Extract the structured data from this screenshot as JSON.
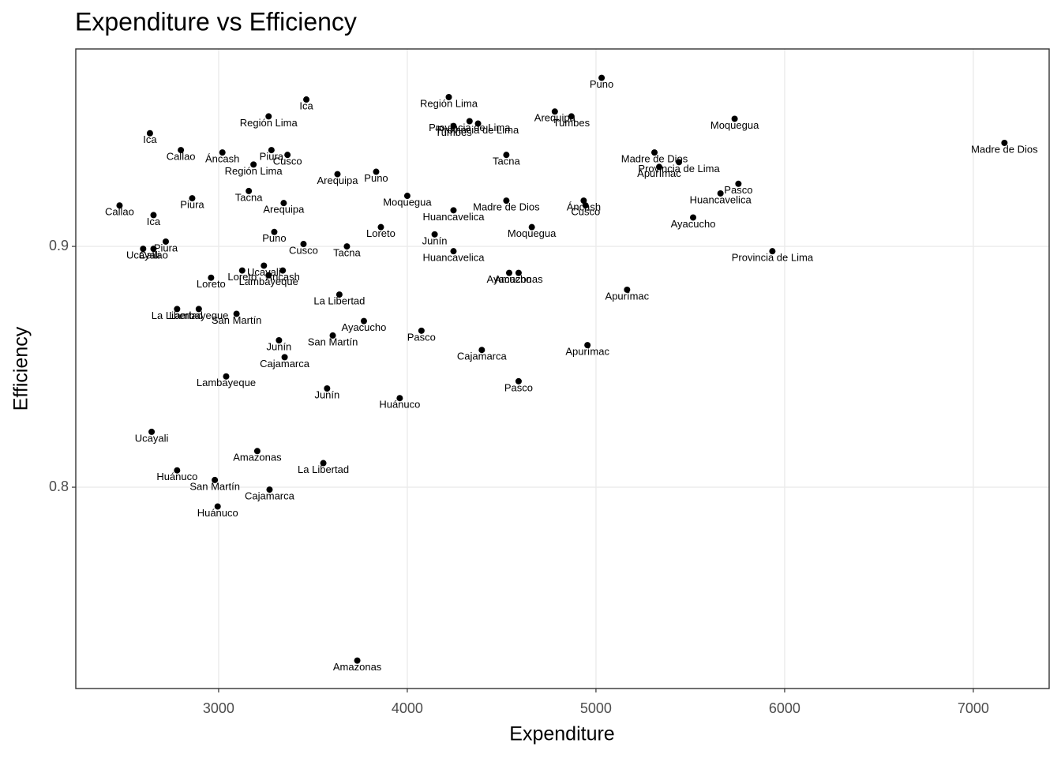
{
  "chart_data": {
    "type": "scatter",
    "title": "Expenditure vs Efficiency",
    "x_label": "Expenditure",
    "y_label": "Efficiency",
    "color": "#000000",
    "grid": true,
    "xlim": [
      2243,
      7402
    ],
    "ylim": [
      0.7164,
      0.982
    ],
    "xticks": [
      3000,
      4000,
      5000,
      6000,
      7000
    ],
    "yticks": [
      0.8,
      0.9
    ],
    "x": [
      5030,
      3465,
      4220,
      3265,
      4782,
      4870,
      5735,
      2636,
      4245,
      4330,
      4375,
      2800,
      3020,
      3280,
      3365,
      3185,
      4525,
      7165,
      5310,
      5440,
      5335,
      3630,
      3835,
      5755,
      5660,
      3160,
      4000,
      2860,
      4525,
      4935,
      4945,
      2475,
      3345,
      4245,
      2655,
      5515,
      4660,
      3860,
      3295,
      4145,
      3450,
      2720,
      3680,
      5935,
      4245,
      2600,
      2655,
      3240,
      3125,
      3340,
      3265,
      4540,
      4590,
      2960,
      5165,
      3640,
      2780,
      2895,
      3095,
      3770,
      4075,
      3605,
      3320,
      4955,
      4395,
      3350,
      3040,
      4590,
      3575,
      3960,
      2645,
      3205,
      3555,
      2780,
      2980,
      3270,
      2995,
      3735
    ],
    "values": [
      0.97,
      0.961,
      0.962,
      0.954,
      0.956,
      0.954,
      0.953,
      0.947,
      0.95,
      0.952,
      0.951,
      0.94,
      0.939,
      0.94,
      0.938,
      0.934,
      0.938,
      0.943,
      0.939,
      0.935,
      0.933,
      0.93,
      0.931,
      0.926,
      0.922,
      0.923,
      0.921,
      0.92,
      0.919,
      0.919,
      0.917,
      0.917,
      0.918,
      0.915,
      0.913,
      0.912,
      0.908,
      0.908,
      0.906,
      0.905,
      0.901,
      0.902,
      0.9,
      0.898,
      0.898,
      0.899,
      0.899,
      0.892,
      0.89,
      0.89,
      0.888,
      0.889,
      0.889,
      0.887,
      0.882,
      0.88,
      0.874,
      0.874,
      0.872,
      0.869,
      0.865,
      0.863,
      0.861,
      0.859,
      0.857,
      0.854,
      0.846,
      0.844,
      0.841,
      0.837,
      0.823,
      0.815,
      0.81,
      0.807,
      0.803,
      0.799,
      0.792,
      0.728
    ],
    "labels": [
      "Puno",
      "Ica",
      "Región Lima",
      "Región Lima",
      "Arequipa",
      "Tumbes",
      "Moquegua",
      "Ica",
      "Tumbes",
      "Provincia de Lima",
      "Provincia de Lima",
      "Callao",
      "Áncash",
      "Piura",
      "Cusco",
      "Región Lima",
      "Tacna",
      "Madre de Dios",
      "Madre de Dios",
      "Provincia de Lima",
      "Apurímac",
      "Arequipa",
      "Puno",
      "Pasco",
      "Huancavelica",
      "Tacna",
      "Moquegua",
      "Piura",
      "Madre de Dios",
      "Áncash",
      "Cusco",
      "Callao",
      "Arequipa",
      "Huancavelica",
      "Ica",
      "Ayacucho",
      "Moquegua",
      "Loreto",
      "Puno",
      "Junín",
      "Cusco",
      "Piura",
      "Tacna",
      "Provincia de Lima",
      "Huancavelica",
      "Ucayali",
      "Callao",
      "Ucayali",
      "Loreto",
      "Áncash",
      "Lambayeque",
      "Ayacucho",
      "Amazonas",
      "Loreto",
      "Apurímac",
      "La Libertad",
      "La Libertad",
      "Lambayeque",
      "San Martín",
      "Ayacucho",
      "Pasco",
      "San Martín",
      "Junín",
      "Apurímac",
      "Cajamarca",
      "Cajamarca",
      "Lambayeque",
      "Pasco",
      "Junín",
      "Huánuco",
      "Ucayali",
      "Amazonas",
      "La Libertad",
      "Huánuco",
      "San Martín",
      "Cajamarca",
      "Huánuco",
      "Amazonas"
    ]
  }
}
